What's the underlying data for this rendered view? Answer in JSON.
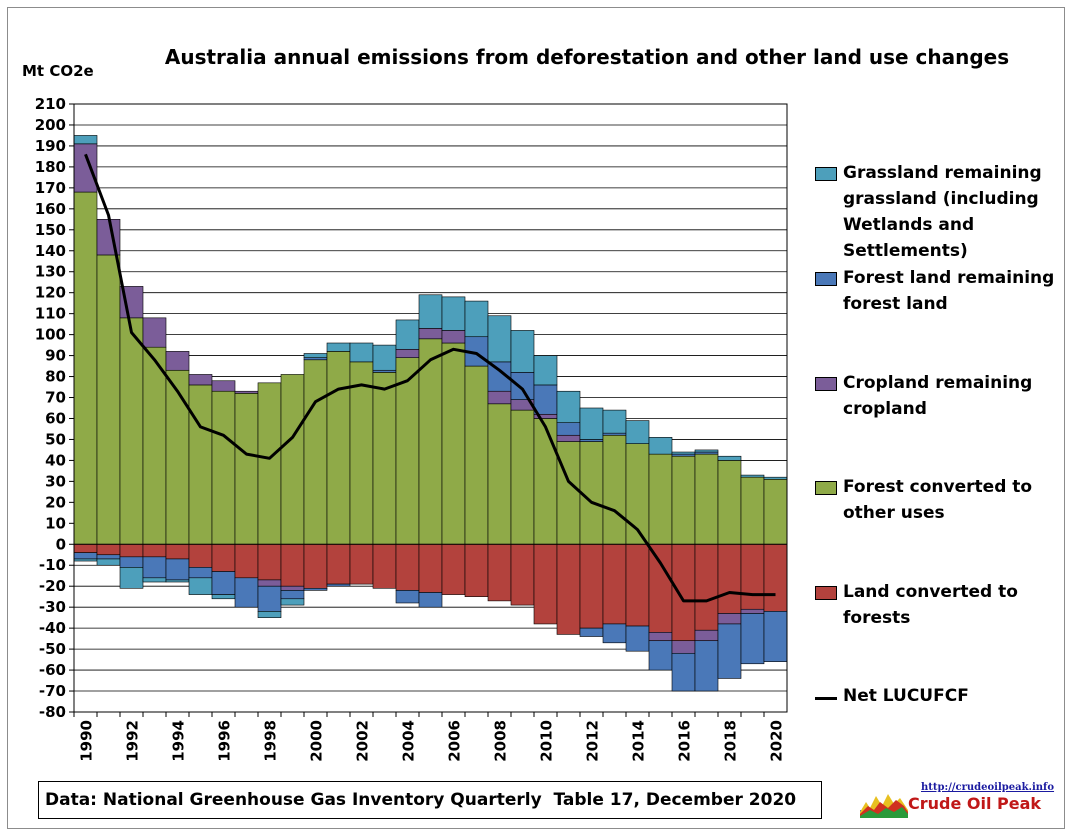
{
  "chart_data": {
    "type": "bar",
    "stacked": true,
    "title": "Australia annual emissions from deforestation and other land use changes",
    "ylabel": "Mt CO2e",
    "xlabel": "",
    "ylim": [
      -80,
      210
    ],
    "ytick_step": 10,
    "grid": "horizontal",
    "legend_position": "right",
    "x": [
      1990,
      1991,
      1992,
      1993,
      1994,
      1995,
      1996,
      1997,
      1998,
      1999,
      2000,
      2001,
      2002,
      2003,
      2004,
      2005,
      2006,
      2007,
      2008,
      2009,
      2010,
      2011,
      2012,
      2013,
      2014,
      2015,
      2016,
      2017,
      2018,
      2019,
      2020
    ],
    "xtick_labels": [
      "1990",
      "1992",
      "1994",
      "1996",
      "1998",
      "2000",
      "2002",
      "2004",
      "2006",
      "2008",
      "2010",
      "2012",
      "2014",
      "2016",
      "2018",
      "2020"
    ],
    "positive_series": [
      {
        "name": "Forest converted to other uses",
        "color": "#8faa48",
        "values": [
          168,
          138,
          108,
          94,
          83,
          76,
          73,
          72,
          77,
          81,
          88,
          92,
          87,
          82,
          89,
          98,
          96,
          85,
          67,
          64,
          60,
          49,
          49,
          52,
          48,
          43,
          42,
          43,
          40,
          32,
          31
        ]
      },
      {
        "name": "Cropland remaining cropland",
        "color": "#7b5d99",
        "values": [
          23,
          17,
          15,
          14,
          9,
          5,
          5,
          1,
          0,
          0,
          0,
          0,
          0,
          0,
          4,
          5,
          6,
          0,
          6,
          5,
          2,
          3,
          0,
          0,
          0,
          0,
          0,
          0,
          0,
          0,
          0
        ]
      },
      {
        "name": "Forest land remaining forest land",
        "color": "#4a78b8",
        "values": [
          0,
          0,
          0,
          0,
          0,
          0,
          0,
          0,
          0,
          0,
          1,
          0,
          0,
          1,
          0,
          0,
          0,
          14,
          14,
          13,
          14,
          6,
          1,
          1,
          0,
          0,
          1,
          1,
          0,
          0,
          0
        ]
      },
      {
        "name": "Grassland remaining grassland (including Wetlands and Settlements)",
        "color": "#4d9fbb",
        "values": [
          4,
          0,
          0,
          0,
          0,
          0,
          0,
          0,
          0,
          0,
          2,
          4,
          9,
          12,
          14,
          16,
          16,
          17,
          22,
          20,
          14,
          15,
          15,
          11,
          11,
          8,
          1,
          1,
          2,
          1,
          1
        ]
      }
    ],
    "negative_series": [
      {
        "name": "Land converted to forests",
        "color": "#b3423d",
        "values": [
          -4,
          -5,
          -6,
          -6,
          -7,
          -11,
          -13,
          -16,
          -17,
          -20,
          -21,
          -19,
          -19,
          -21,
          -22,
          -23,
          -24,
          -25,
          -27,
          -29,
          -38,
          -43,
          -40,
          -38,
          -39,
          -42,
          -46,
          -41,
          -33,
          -31,
          -32
        ]
      },
      {
        "name": "Cropland remaining cropland",
        "color": "#7b5d99",
        "values": [
          0,
          0,
          0,
          0,
          0,
          0,
          0,
          0,
          -3,
          -2,
          0,
          0,
          0,
          0,
          0,
          0,
          0,
          0,
          0,
          0,
          0,
          0,
          0,
          0,
          0,
          -4,
          -6,
          -5,
          -5,
          -2,
          0
        ]
      },
      {
        "name": "Forest land remaining forest land",
        "color": "#4a78b8",
        "values": [
          -3,
          -2,
          -5,
          -10,
          -10,
          -5,
          -11,
          -14,
          -12,
          -4,
          -1,
          -1,
          0,
          0,
          -6,
          -7,
          0,
          0,
          0,
          0,
          0,
          0,
          -4,
          -9,
          -12,
          -14,
          -18,
          -24,
          -26,
          -24,
          -24
        ]
      },
      {
        "name": "Grassland remaining grassland (including Wetlands and Settlements)",
        "color": "#4d9fbb",
        "values": [
          -1,
          -3,
          -10,
          -2,
          -1,
          -8,
          -2,
          0,
          -3,
          -3,
          0,
          0,
          0,
          0,
          0,
          0,
          0,
          0,
          0,
          0,
          0,
          0,
          0,
          0,
          0,
          0,
          0,
          0,
          0,
          0,
          0
        ]
      }
    ],
    "line_series": {
      "name": "Net LUCUFCF",
      "color": "#000000",
      "values": [
        186,
        157,
        101,
        88,
        73,
        56,
        52,
        43,
        41,
        51,
        68,
        74,
        76,
        74,
        78,
        88,
        93,
        91,
        83,
        74,
        56,
        30,
        20,
        16,
        7,
        -9,
        -27,
        -27,
        -23,
        -24,
        -24
      ]
    },
    "legend": [
      {
        "label": "Grassland remaining grassland (including Wetlands and Settlements)",
        "color": "#4d9fbb",
        "kind": "bar"
      },
      {
        "label": "Forest land remaining forest land",
        "color": "#4a78b8",
        "kind": "bar"
      },
      {
        "label": "Cropland remaining cropland",
        "color": "#7b5d99",
        "kind": "bar"
      },
      {
        "label": "Forest converted to other uses",
        "color": "#8faa48",
        "kind": "bar"
      },
      {
        "label": "Land converted to forests",
        "color": "#b3423d",
        "kind": "bar"
      },
      {
        "label": "Net LUCUFCF",
        "color": "#000000",
        "kind": "line"
      }
    ]
  },
  "legend_lines": [
    [
      "Grassland remaining",
      "grassland (including",
      "Wetlands and",
      "Settlements)"
    ],
    [
      "Forest land remaining",
      "forest land"
    ],
    [
      "Cropland remaining",
      "cropland"
    ],
    [
      "Forest converted to",
      "other uses"
    ],
    [
      "Land converted to",
      "forests"
    ],
    [
      "Net LUCUFCF"
    ]
  ],
  "source_note": "Data: National Greenhouse Gas Inventory Quarterly  Table 17, December 2020",
  "logo": {
    "url": "http://crudeoilpeak.info",
    "name": "Crude Oil Peak"
  }
}
